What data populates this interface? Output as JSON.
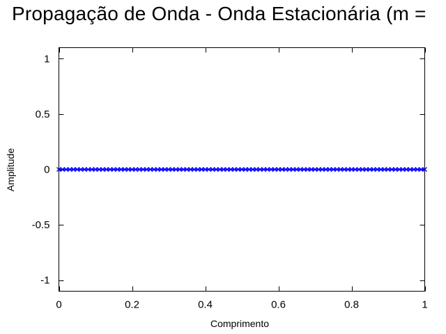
{
  "chart_data": {
    "type": "scatter",
    "title": "Propagação de Onda - Onda Estacionária (m =",
    "xlabel": "Comprimento",
    "ylabel": "Amplitude",
    "xlim": [
      0,
      1
    ],
    "ylim": [
      -1.1,
      1.1
    ],
    "x_ticks": [
      0,
      0.2,
      0.4,
      0.6,
      0.8,
      1
    ],
    "x_tick_labels": [
      "0",
      "0.2",
      "0.4",
      "0.6",
      "0.8",
      "1"
    ],
    "y_ticks": [
      1,
      0.5,
      0,
      -0.5,
      -1
    ],
    "y_tick_labels": [
      "1",
      "0.5",
      "0",
      "-0.5",
      "-1"
    ],
    "grid": false,
    "marker": "x",
    "color": "#0000ff",
    "series": [
      {
        "x_start": 0,
        "x_end": 1,
        "x_step": 0.01,
        "y_constant": 0
      }
    ]
  }
}
